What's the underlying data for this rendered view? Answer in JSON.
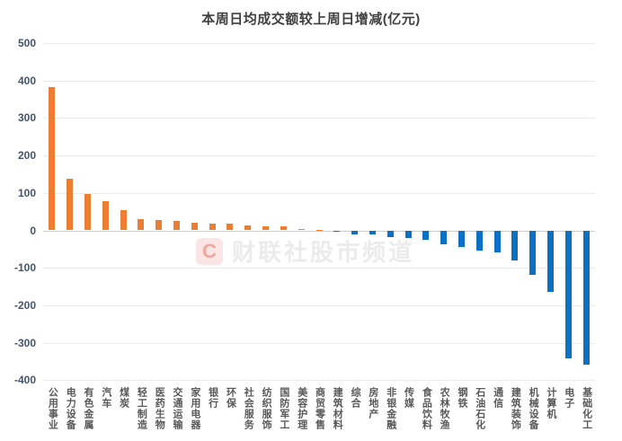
{
  "title": "本周日均成交额较上周日增减(亿元)",
  "watermark": {
    "logo_letter": "C",
    "text": "财联社股市频道"
  },
  "colors": {
    "positive": "#ED7D31",
    "negative": "#0A71C4",
    "title": "#404040",
    "axis_label": "#44546A",
    "category_label": "#595959",
    "gridline": "#EBEBEB",
    "zero_line": "#CFCFCF",
    "watermark_bg": "#FBE5E4",
    "watermark_letter": "#F2A6A0",
    "watermark_text": "#EBEBEB"
  },
  "chart_data": {
    "type": "bar",
    "title": "本周日均成交额较上周日增减(亿元)",
    "unit": "亿元",
    "categories": [
      "公用事业",
      "电力设备",
      "有色金属",
      "汽车",
      "煤炭",
      "轻工制造",
      "医药生物",
      "交通运输",
      "家用电器",
      "银行",
      "环保",
      "社会服务",
      "纺织服饰",
      "国防军工",
      "美容护理",
      "商贸零售",
      "建筑材料",
      "综合",
      "房地产",
      "非银金融",
      "传媒",
      "食品饮料",
      "农林牧渔",
      "钢铁",
      "石油石化",
      "通信",
      "建筑装饰",
      "机械设备",
      "计算机",
      "电子",
      "基础化工"
    ],
    "values": [
      382,
      139,
      98,
      78,
      55,
      31,
      27,
      25,
      21,
      19,
      18,
      13,
      11,
      10,
      4,
      1,
      -1,
      -9,
      -10,
      -17,
      -18,
      -24,
      -36,
      -42,
      -52,
      -58,
      -79,
      -118,
      -163,
      -340,
      -357
    ],
    "yticks": [
      500,
      400,
      300,
      200,
      100,
      0,
      -100,
      -200,
      -300,
      -400
    ],
    "ylim": [
      -400,
      500
    ],
    "grid": true,
    "legend": "none",
    "xlabel": "",
    "ylabel": ""
  }
}
